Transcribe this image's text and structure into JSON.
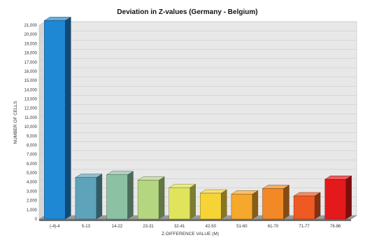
{
  "chart_data": {
    "type": "bar",
    "title": "Deviation in Z-values (Germany - Belgium)",
    "xlabel": "Z-DIFFERENCE VALUE (M)",
    "ylabel": "NUMBER OF CELLS",
    "categories": [
      "(-4)-4",
      "5-13",
      "14-22",
      "23-31",
      "32-41",
      "42-50",
      "51-60",
      "61-70",
      "71-77",
      "78-86"
    ],
    "values": [
      21500,
      4500,
      4800,
      4200,
      3400,
      2800,
      2700,
      3300,
      2500,
      4300
    ],
    "colors": [
      "#1e88d4",
      "#5ea3ba",
      "#8cc2a3",
      "#b4d680",
      "#e0e45c",
      "#f6d438",
      "#f5a82c",
      "#f28826",
      "#ee5a22",
      "#e4191c"
    ],
    "ylim": [
      0,
      21000
    ],
    "yticks": [
      0,
      1000,
      2000,
      3000,
      4000,
      5000,
      6000,
      7000,
      8000,
      9000,
      10000,
      11000,
      12000,
      13000,
      14000,
      15000,
      16000,
      17000,
      18000,
      19000,
      20000,
      21000
    ],
    "ytick_labels": [
      "0",
      "1,000",
      "2,000",
      "3,000",
      "4,000",
      "5,000",
      "6,000",
      "7,000",
      "8,000",
      "9,000",
      "10,000",
      "11,000",
      "12,000",
      "13,000",
      "14,000",
      "15,000",
      "16,000",
      "17,000",
      "18,000",
      "19,000",
      "20,000",
      "21,000"
    ],
    "grid": true,
    "style": "3d"
  }
}
